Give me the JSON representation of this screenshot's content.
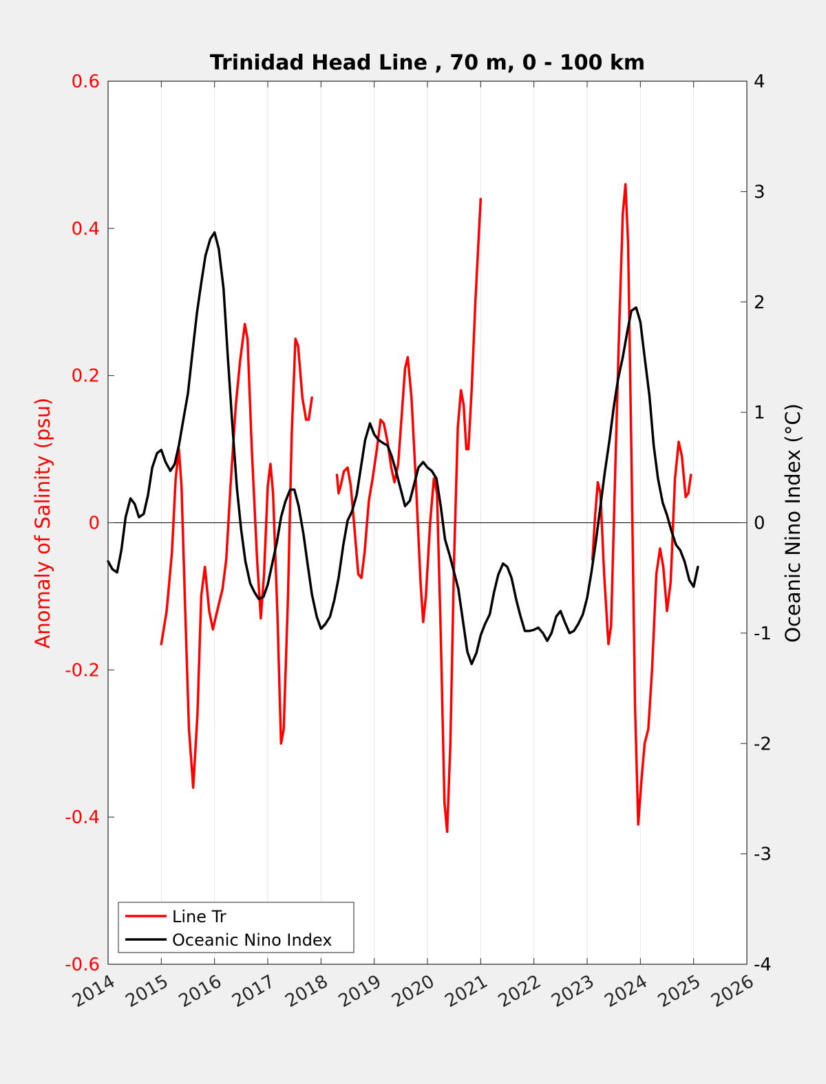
{
  "chart_data": {
    "type": "line",
    "title": "Trinidad Head Line , 70 m, 0 - 100 km",
    "xlabel": "",
    "ylabel_left": "Anomaly of Salinity (psu)",
    "ylabel_right": "Oceanic Nino Index (°C)",
    "xlim": [
      2014,
      2026
    ],
    "ylim_left": [
      -0.6,
      0.6
    ],
    "ylim_right": [
      -4,
      4
    ],
    "x_ticks": [
      "2014",
      "2015",
      "2016",
      "2017",
      "2018",
      "2019",
      "2020",
      "2021",
      "2022",
      "2023",
      "2024",
      "2025",
      "2026"
    ],
    "y_ticks_left": [
      "0.6",
      "0.4",
      "0.2",
      "0",
      "-0.2",
      "-0.4",
      "-0.6"
    ],
    "y_ticks_right": [
      "4",
      "3",
      "2",
      "1",
      "0",
      "-1",
      "-2",
      "-3",
      "-4"
    ],
    "grid": "vertical",
    "legend": "bottom-left",
    "colors": {
      "salinity": "#ff0000",
      "oni": "#000000",
      "background": "#f0f0f0"
    },
    "series": [
      {
        "name": "Line Tr",
        "axis": "left",
        "segments": [
          [
            [
              2015.0,
              -0.165
            ],
            [
              2015.1,
              -0.12
            ],
            [
              2015.2,
              -0.04
            ],
            [
              2015.27,
              0.06
            ],
            [
              2015.33,
              0.1
            ],
            [
              2015.38,
              0.05
            ],
            [
              2015.45,
              -0.12
            ],
            [
              2015.52,
              -0.28
            ],
            [
              2015.6,
              -0.36
            ],
            [
              2015.68,
              -0.26
            ],
            [
              2015.75,
              -0.1
            ],
            [
              2015.82,
              -0.06
            ],
            [
              2015.9,
              -0.12
            ],
            [
              2015.97,
              -0.145
            ],
            [
              2016.05,
              -0.12
            ],
            [
              2016.15,
              -0.09
            ],
            [
              2016.22,
              -0.05
            ],
            [
              2016.3,
              0.05
            ],
            [
              2016.4,
              0.16
            ],
            [
              2016.48,
              0.22
            ],
            [
              2016.57,
              0.27
            ],
            [
              2016.62,
              0.25
            ],
            [
              2016.7,
              0.1
            ],
            [
              2016.8,
              -0.05
            ],
            [
              2016.87,
              -0.13
            ],
            [
              2016.93,
              -0.07
            ],
            [
              2017.0,
              0.05
            ],
            [
              2017.05,
              0.08
            ],
            [
              2017.1,
              0.04
            ],
            [
              2017.18,
              -0.12
            ],
            [
              2017.25,
              -0.3
            ],
            [
              2017.3,
              -0.28
            ],
            [
              2017.38,
              -0.1
            ],
            [
              2017.45,
              0.12
            ],
            [
              2017.52,
              0.25
            ],
            [
              2017.57,
              0.24
            ],
            [
              2017.65,
              0.17
            ],
            [
              2017.72,
              0.14
            ],
            [
              2017.77,
              0.14
            ],
            [
              2017.83,
              0.17
            ]
          ],
          [
            [
              2018.3,
              0.065
            ],
            [
              2018.33,
              0.04
            ],
            [
              2018.37,
              0.05
            ],
            [
              2018.43,
              0.07
            ],
            [
              2018.5,
              0.075
            ],
            [
              2018.56,
              0.05
            ],
            [
              2018.62,
              0.0
            ],
            [
              2018.7,
              -0.07
            ],
            [
              2018.76,
              -0.075
            ],
            [
              2018.82,
              -0.04
            ],
            [
              2018.9,
              0.03
            ],
            [
              2018.97,
              0.06
            ],
            [
              2019.05,
              0.1
            ],
            [
              2019.12,
              0.14
            ],
            [
              2019.18,
              0.135
            ],
            [
              2019.25,
              0.11
            ],
            [
              2019.32,
              0.075
            ],
            [
              2019.38,
              0.055
            ],
            [
              2019.45,
              0.08
            ],
            [
              2019.52,
              0.15
            ],
            [
              2019.58,
              0.21
            ],
            [
              2019.63,
              0.225
            ],
            [
              2019.7,
              0.17
            ],
            [
              2019.78,
              0.06
            ],
            [
              2019.87,
              -0.08
            ],
            [
              2019.92,
              -0.135
            ],
            [
              2019.97,
              -0.1
            ],
            [
              2020.05,
              0.0
            ],
            [
              2020.12,
              0.06
            ],
            [
              2020.18,
              0.04
            ],
            [
              2020.25,
              -0.15
            ],
            [
              2020.32,
              -0.38
            ],
            [
              2020.37,
              -0.42
            ],
            [
              2020.43,
              -0.3
            ],
            [
              2020.5,
              -0.05
            ],
            [
              2020.57,
              0.13
            ],
            [
              2020.63,
              0.18
            ],
            [
              2020.68,
              0.16
            ],
            [
              2020.73,
              0.1
            ],
            [
              2020.77,
              0.1
            ],
            [
              2020.83,
              0.18
            ],
            [
              2020.9,
              0.3
            ],
            [
              2021.0,
              0.44
            ]
          ],
          [
            [
              2023.1,
              -0.05
            ],
            [
              2023.15,
              0.01
            ],
            [
              2023.2,
              0.055
            ],
            [
              2023.25,
              0.04
            ],
            [
              2023.32,
              -0.07
            ],
            [
              2023.4,
              -0.165
            ],
            [
              2023.45,
              -0.14
            ],
            [
              2023.52,
              0.05
            ],
            [
              2023.6,
              0.26
            ],
            [
              2023.67,
              0.42
            ],
            [
              2023.72,
              0.46
            ],
            [
              2023.77,
              0.38
            ],
            [
              2023.83,
              0.1
            ],
            [
              2023.9,
              -0.25
            ],
            [
              2023.96,
              -0.41
            ],
            [
              2024.02,
              -0.35
            ],
            [
              2024.08,
              -0.3
            ],
            [
              2024.15,
              -0.28
            ],
            [
              2024.22,
              -0.2
            ],
            [
              2024.3,
              -0.07
            ],
            [
              2024.37,
              -0.035
            ],
            [
              2024.43,
              -0.06
            ],
            [
              2024.5,
              -0.12
            ],
            [
              2024.57,
              -0.08
            ],
            [
              2024.65,
              0.06
            ],
            [
              2024.72,
              0.11
            ],
            [
              2024.78,
              0.09
            ],
            [
              2024.85,
              0.035
            ],
            [
              2024.9,
              0.04
            ],
            [
              2024.95,
              0.065
            ]
          ]
        ]
      },
      {
        "name": "Oceanic Nino Index",
        "axis": "right",
        "segments": [
          [
            [
              2014.0,
              -0.35
            ],
            [
              2014.08,
              -0.42
            ],
            [
              2014.17,
              -0.45
            ],
            [
              2014.25,
              -0.25
            ],
            [
              2014.33,
              0.05
            ],
            [
              2014.42,
              0.22
            ],
            [
              2014.5,
              0.17
            ],
            [
              2014.58,
              0.05
            ],
            [
              2014.67,
              0.08
            ],
            [
              2014.75,
              0.25
            ],
            [
              2014.83,
              0.5
            ],
            [
              2014.92,
              0.63
            ],
            [
              2015.0,
              0.66
            ],
            [
              2015.08,
              0.55
            ],
            [
              2015.17,
              0.47
            ],
            [
              2015.25,
              0.53
            ],
            [
              2015.33,
              0.7
            ],
            [
              2015.42,
              0.95
            ],
            [
              2015.5,
              1.17
            ],
            [
              2015.58,
              1.52
            ],
            [
              2015.67,
              1.9
            ],
            [
              2015.75,
              2.17
            ],
            [
              2015.83,
              2.42
            ],
            [
              2015.92,
              2.57
            ],
            [
              2016.0,
              2.63
            ],
            [
              2016.08,
              2.48
            ],
            [
              2016.17,
              2.12
            ],
            [
              2016.25,
              1.5
            ],
            [
              2016.33,
              0.92
            ],
            [
              2016.42,
              0.32
            ],
            [
              2016.5,
              -0.06
            ],
            [
              2016.58,
              -0.35
            ],
            [
              2016.67,
              -0.55
            ],
            [
              2016.75,
              -0.63
            ],
            [
              2016.83,
              -0.69
            ],
            [
              2016.92,
              -0.67
            ],
            [
              2017.0,
              -0.56
            ],
            [
              2017.08,
              -0.38
            ],
            [
              2017.17,
              -0.18
            ],
            [
              2017.25,
              0.05
            ],
            [
              2017.33,
              0.19
            ],
            [
              2017.42,
              0.3
            ],
            [
              2017.5,
              0.3
            ],
            [
              2017.58,
              0.15
            ],
            [
              2017.67,
              -0.1
            ],
            [
              2017.75,
              -0.38
            ],
            [
              2017.83,
              -0.65
            ],
            [
              2017.92,
              -0.85
            ],
            [
              2018.0,
              -0.96
            ],
            [
              2018.08,
              -0.92
            ],
            [
              2018.17,
              -0.85
            ],
            [
              2018.25,
              -0.7
            ],
            [
              2018.33,
              -0.5
            ],
            [
              2018.42,
              -0.2
            ],
            [
              2018.5,
              0.02
            ],
            [
              2018.58,
              0.1
            ],
            [
              2018.67,
              0.25
            ],
            [
              2018.75,
              0.5
            ],
            [
              2018.83,
              0.75
            ],
            [
              2018.92,
              0.9
            ],
            [
              2019.0,
              0.8
            ],
            [
              2019.08,
              0.75
            ],
            [
              2019.17,
              0.72
            ],
            [
              2019.25,
              0.7
            ],
            [
              2019.33,
              0.6
            ],
            [
              2019.42,
              0.45
            ],
            [
              2019.5,
              0.3
            ],
            [
              2019.58,
              0.15
            ],
            [
              2019.67,
              0.2
            ],
            [
              2019.75,
              0.35
            ],
            [
              2019.83,
              0.5
            ],
            [
              2019.92,
              0.55
            ],
            [
              2020.0,
              0.5
            ],
            [
              2020.08,
              0.47
            ],
            [
              2020.17,
              0.4
            ],
            [
              2020.25,
              0.15
            ],
            [
              2020.33,
              -0.15
            ],
            [
              2020.42,
              -0.3
            ],
            [
              2020.5,
              -0.45
            ],
            [
              2020.58,
              -0.6
            ],
            [
              2020.67,
              -0.9
            ],
            [
              2020.75,
              -1.17
            ],
            [
              2020.83,
              -1.28
            ],
            [
              2020.92,
              -1.18
            ],
            [
              2021.0,
              -1.02
            ],
            [
              2021.08,
              -0.92
            ],
            [
              2021.17,
              -0.83
            ],
            [
              2021.25,
              -0.63
            ],
            [
              2021.33,
              -0.47
            ],
            [
              2021.42,
              -0.37
            ],
            [
              2021.5,
              -0.4
            ],
            [
              2021.58,
              -0.5
            ],
            [
              2021.67,
              -0.7
            ],
            [
              2021.75,
              -0.85
            ],
            [
              2021.83,
              -0.98
            ],
            [
              2021.92,
              -0.98
            ],
            [
              2022.0,
              -0.97
            ],
            [
              2022.08,
              -0.95
            ],
            [
              2022.17,
              -1.0
            ],
            [
              2022.25,
              -1.07
            ],
            [
              2022.33,
              -1.0
            ],
            [
              2022.42,
              -0.85
            ],
            [
              2022.5,
              -0.8
            ],
            [
              2022.58,
              -0.9
            ],
            [
              2022.67,
              -1.0
            ],
            [
              2022.75,
              -0.98
            ],
            [
              2022.83,
              -0.92
            ],
            [
              2022.92,
              -0.83
            ],
            [
              2023.0,
              -0.68
            ],
            [
              2023.08,
              -0.45
            ],
            [
              2023.17,
              -0.15
            ],
            [
              2023.25,
              0.15
            ],
            [
              2023.33,
              0.45
            ],
            [
              2023.42,
              0.75
            ],
            [
              2023.5,
              1.05
            ],
            [
              2023.58,
              1.3
            ],
            [
              2023.67,
              1.5
            ],
            [
              2023.75,
              1.72
            ],
            [
              2023.83,
              1.92
            ],
            [
              2023.92,
              1.95
            ],
            [
              2024.0,
              1.82
            ],
            [
              2024.08,
              1.5
            ],
            [
              2024.17,
              1.15
            ],
            [
              2024.25,
              0.7
            ],
            [
              2024.33,
              0.4
            ],
            [
              2024.42,
              0.18
            ],
            [
              2024.5,
              0.07
            ],
            [
              2024.58,
              -0.07
            ],
            [
              2024.67,
              -0.2
            ],
            [
              2024.75,
              -0.25
            ],
            [
              2024.83,
              -0.35
            ],
            [
              2024.92,
              -0.52
            ],
            [
              2025.0,
              -0.58
            ],
            [
              2025.08,
              -0.4
            ]
          ]
        ]
      }
    ]
  }
}
